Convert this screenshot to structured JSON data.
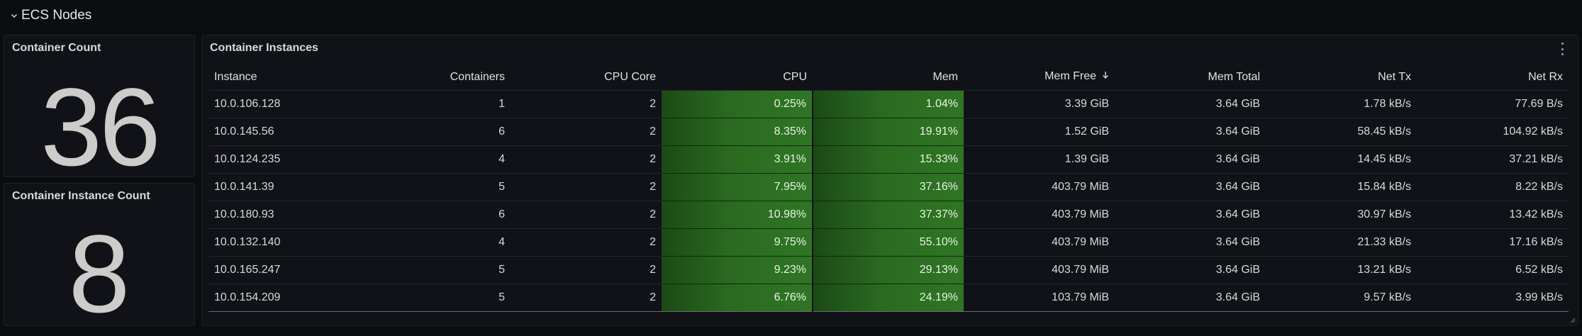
{
  "row": {
    "title": "ECS Nodes",
    "chevron_icon": "chevron-down-icon"
  },
  "panels": {
    "container_count": {
      "title": "Container Count",
      "value": "36"
    },
    "container_instance_count": {
      "title": "Container Instance Count",
      "value": "8"
    },
    "container_instances": {
      "title": "Container Instances",
      "menu_icon": "kebab-menu-icon",
      "columns": [
        "Instance",
        "Containers",
        "CPU Core",
        "CPU",
        "Mem",
        "Mem Free",
        "Mem Total",
        "Net Tx",
        "Net Rx"
      ],
      "sorted_column": "Mem Free",
      "sort_direction": "descending",
      "rows": [
        [
          "10.0.106.128",
          "1",
          "2",
          "0.25%",
          "1.04%",
          "3.39 GiB",
          "3.64 GiB",
          "1.78 kB/s",
          "77.69 B/s"
        ],
        [
          "10.0.145.56",
          "6",
          "2",
          "8.35%",
          "19.91%",
          "1.52 GiB",
          "3.64 GiB",
          "58.45 kB/s",
          "104.92 kB/s"
        ],
        [
          "10.0.124.235",
          "4",
          "2",
          "3.91%",
          "15.33%",
          "1.39 GiB",
          "3.64 GiB",
          "14.45 kB/s",
          "37.21 kB/s"
        ],
        [
          "10.0.141.39",
          "5",
          "2",
          "7.95%",
          "37.16%",
          "403.79 MiB",
          "3.64 GiB",
          "15.84 kB/s",
          "8.22 kB/s"
        ],
        [
          "10.0.180.93",
          "6",
          "2",
          "10.98%",
          "37.37%",
          "403.79 MiB",
          "3.64 GiB",
          "30.97 kB/s",
          "13.42 kB/s"
        ],
        [
          "10.0.132.140",
          "4",
          "2",
          "9.75%",
          "55.10%",
          "403.79 MiB",
          "3.64 GiB",
          "21.33 kB/s",
          "17.16 kB/s"
        ],
        [
          "10.0.165.247",
          "5",
          "2",
          "9.23%",
          "29.13%",
          "403.79 MiB",
          "3.64 GiB",
          "13.21 kB/s",
          "6.52 kB/s"
        ],
        [
          "10.0.154.209",
          "5",
          "2",
          "6.76%",
          "24.19%",
          "103.79 MiB",
          "3.64 GiB",
          "9.57 kB/s",
          "3.99 kB/s"
        ]
      ]
    }
  },
  "colors": {
    "background": "#0b0c0e",
    "panel": "#111217",
    "threshold_green": "#2f7524",
    "stat_text": "#ccccca"
  }
}
